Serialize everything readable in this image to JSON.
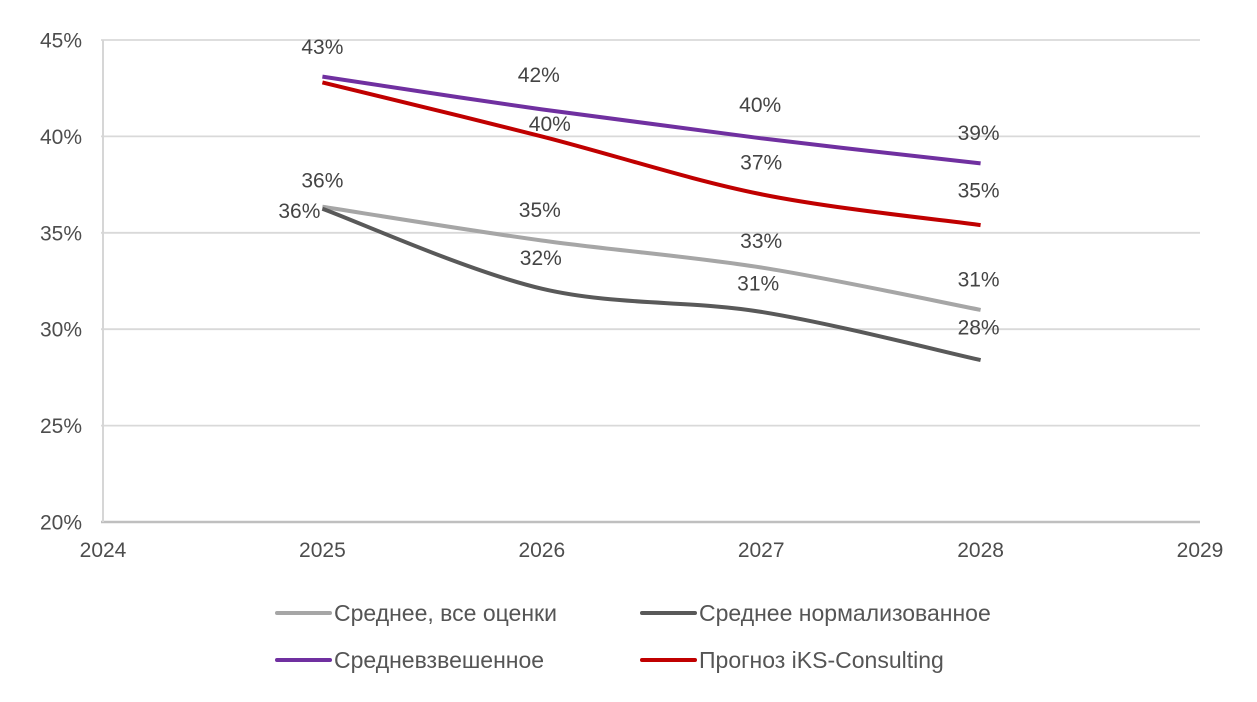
{
  "chart_data": {
    "type": "line",
    "title": "",
    "xlabel": "",
    "ylabel": "",
    "grid": "horizontal",
    "legend_position": "bottom",
    "x": [
      2025,
      2026,
      2027,
      2028
    ],
    "x_axis": {
      "range": [
        2024,
        2029
      ],
      "tick_values": [
        2024,
        2025,
        2026,
        2027,
        2028,
        2029
      ],
      "tick_labels": [
        "2024",
        "2025",
        "2026",
        "2027",
        "2028",
        "2029"
      ]
    },
    "y_axis": {
      "unit": "%",
      "range": [
        20,
        45
      ],
      "tick_values": [
        20,
        25,
        30,
        35,
        40,
        45
      ],
      "tick_labels": [
        "20%",
        "25%",
        "30%",
        "35%",
        "40%",
        "45%"
      ]
    },
    "series": [
      {
        "name": "Среднее, все оценки",
        "color": "#A6A6A6",
        "values": [
          36,
          35,
          33,
          31
        ],
        "values_precise": [
          36.35,
          34.6,
          33.2,
          31.0
        ],
        "labels": [
          "36%",
          "35%",
          "33%",
          "31%"
        ],
        "label_offsets": [
          [
            0,
            -27
          ],
          [
            -2,
            -31
          ],
          [
            0,
            -27
          ],
          [
            -2,
            -31
          ]
        ]
      },
      {
        "name": "Среднее нормализованное",
        "color": "#595959",
        "values": [
          36,
          32,
          31,
          28
        ],
        "values_precise": [
          36.25,
          32.1,
          30.9,
          28.4
        ],
        "labels": [
          "36%",
          "32%",
          "31%",
          "28%"
        ],
        "label_offsets": [
          [
            -23,
            2
          ],
          [
            -1,
            -31
          ],
          [
            -3,
            -29
          ],
          [
            -2,
            -33
          ]
        ]
      },
      {
        "name": "Средневзвешенное",
        "color": "#7030A0",
        "values": [
          43,
          42,
          40,
          39
        ],
        "values_precise": [
          43.1,
          41.4,
          39.9,
          38.6
        ],
        "labels": [
          "43%",
          "42%",
          "40%",
          "39%"
        ],
        "label_offsets": [
          [
            0,
            -30
          ],
          [
            -3,
            -35
          ],
          [
            -1,
            -34
          ],
          [
            -2,
            -31
          ]
        ]
      },
      {
        "name": "Прогноз iKS-Consulting",
        "color": "#C00000",
        "values": [
          43,
          40,
          37,
          35
        ],
        "values_precise": [
          42.8,
          40.0,
          37.0,
          35.4
        ],
        "labels": [
          "",
          "40%",
          "37%",
          "35%"
        ],
        "label_offsets": [
          [
            0,
            0
          ],
          [
            8,
            -13
          ],
          [
            0,
            -32
          ],
          [
            -2,
            -35
          ]
        ]
      }
    ],
    "colors": {
      "gridline": "#D9D9D9",
      "axis_line": "#BFBFBF",
      "vertical_axis_line": "#D6D6D6",
      "tick_text": "#4d4d4d",
      "data_label_text": "#444444",
      "legend_text": "#555555"
    }
  }
}
